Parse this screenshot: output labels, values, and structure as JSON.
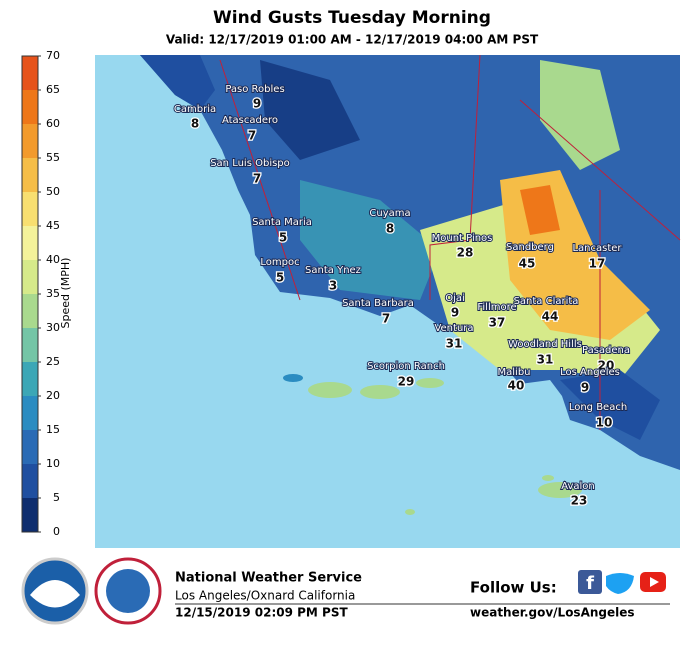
{
  "header": {
    "title": "Wind Gusts Tuesday Morning",
    "subtitle": "Valid: 12/17/2019 01:00 AM - 12/17/2019 04:00 AM PST"
  },
  "colorbar": {
    "label": "Speed (MPH)",
    "ticks": [
      0,
      5,
      10,
      15,
      20,
      25,
      30,
      35,
      40,
      45,
      50,
      55,
      60,
      65,
      70
    ],
    "colors": [
      "#0e2d6e",
      "#1f4fa0",
      "#2a6bb5",
      "#2b8cc1",
      "#3ca7b6",
      "#74c5a6",
      "#a9d98e",
      "#d6ea8a",
      "#f4f29a",
      "#f8df70",
      "#f5bd47",
      "#f29a2c",
      "#ee7719",
      "#e6531b"
    ]
  },
  "stations": [
    {
      "name": "Paso Robles",
      "value": "9"
    },
    {
      "name": "Cambria",
      "value": "8"
    },
    {
      "name": "Atascadero",
      "value": "7"
    },
    {
      "name": "San Luis Obispo",
      "value": "7"
    },
    {
      "name": "Santa Maria",
      "value": "5"
    },
    {
      "name": "Cuyama",
      "value": "8"
    },
    {
      "name": "Mount Pinos",
      "value": "28"
    },
    {
      "name": "Sandberg",
      "value": "45"
    },
    {
      "name": "Lancaster",
      "value": "17"
    },
    {
      "name": "Lompoc",
      "value": "5"
    },
    {
      "name": "Santa Ynez",
      "value": "3"
    },
    {
      "name": "Ojai",
      "value": "9"
    },
    {
      "name": "Santa Barbara",
      "value": "7"
    },
    {
      "name": "Fillmore",
      "value": "37"
    },
    {
      "name": "Santa Clarita",
      "value": "44"
    },
    {
      "name": "Ventura",
      "value": "31"
    },
    {
      "name": "Woodland Hills",
      "value": "31"
    },
    {
      "name": "Pasadena",
      "value": "20"
    },
    {
      "name": "Scorpion Ranch",
      "value": "29"
    },
    {
      "name": "Malibu",
      "value": "40"
    },
    {
      "name": "Los Angeles",
      "value": "9"
    },
    {
      "name": "Long Beach",
      "value": "10"
    },
    {
      "name": "Avalon",
      "value": "23"
    }
  ],
  "footer": {
    "org": "National Weather Service",
    "office": "Los Angeles/Oxnard California",
    "issued": "12/15/2019 02:09 PM PST",
    "follow": "Follow Us:",
    "website": "weather.gov/LosAngeles"
  }
}
